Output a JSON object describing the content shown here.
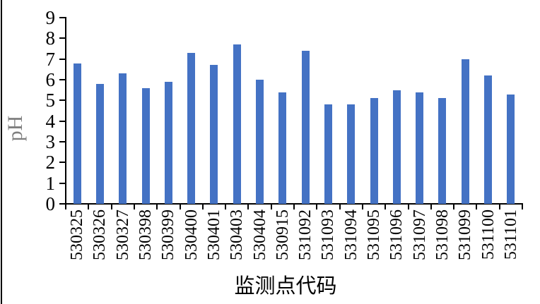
{
  "chart_data": {
    "type": "bar",
    "title": "",
    "xlabel": "监测点代码",
    "ylabel": "pH",
    "categories": [
      "530325",
      "530326",
      "530327",
      "530398",
      "530399",
      "530400",
      "530401",
      "530403",
      "530404",
      "530915",
      "531092",
      "531093",
      "531094",
      "531095",
      "531096",
      "531097",
      "531098",
      "531099",
      "531100",
      "531101"
    ],
    "values": [
      6.8,
      5.8,
      6.3,
      5.6,
      5.9,
      7.3,
      6.7,
      7.7,
      6.0,
      5.4,
      7.4,
      4.8,
      4.8,
      5.1,
      5.5,
      5.4,
      5.1,
      7.0,
      6.2,
      5.3
    ],
    "ylim": [
      0,
      9
    ],
    "yticks": [
      0,
      1,
      2,
      3,
      4,
      5,
      6,
      7,
      8,
      9
    ],
    "grid": false,
    "legend": "none",
    "bar_color": "#4472C4",
    "axis_color": "#000000",
    "tick_label_color": "#000000",
    "ylabel_color": "#7f7f7f",
    "xlabel_color": "#000000"
  }
}
